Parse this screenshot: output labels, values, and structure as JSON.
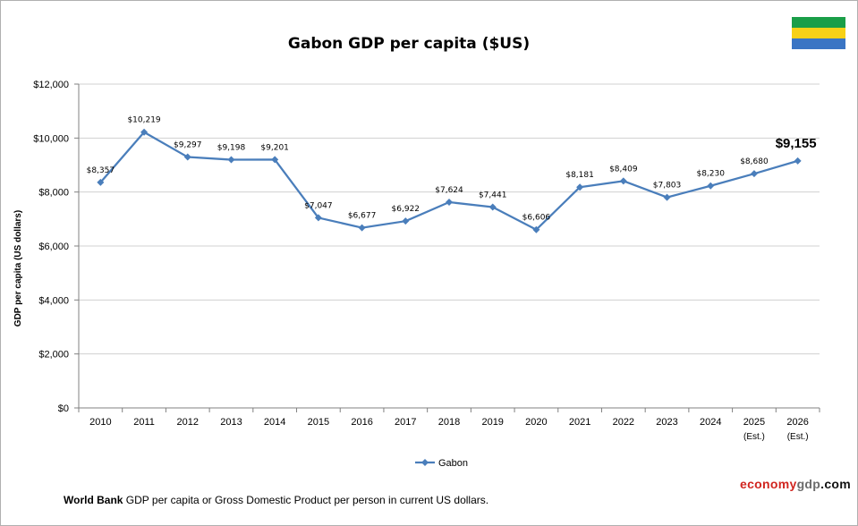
{
  "header": {
    "title": "Gabon GDP per capita ($US)"
  },
  "flag": {
    "stripes": [
      "#1a9e48",
      "#f7d117",
      "#3a75c4"
    ]
  },
  "chart_data": {
    "type": "line",
    "title": "Gabon GDP per capita ($US)",
    "xlabel": "",
    "ylabel": "GDP per capita (US dollars)",
    "ylim": [
      0,
      12000
    ],
    "y_ticks": [
      0,
      2000,
      4000,
      6000,
      8000,
      10000,
      12000
    ],
    "y_tick_labels": [
      "$0",
      "$2,000",
      "$4,000",
      "$6,000",
      "$8,000",
      "$10,000",
      "$12,000"
    ],
    "grid": true,
    "legend_position": "bottom",
    "categories": [
      "2010",
      "2011",
      "2012",
      "2013",
      "2014",
      "2015",
      "2016",
      "2017",
      "2018",
      "2019",
      "2020",
      "2021",
      "2022",
      "2023",
      "2024",
      "2025",
      "2026"
    ],
    "category_sublabels": [
      "",
      "",
      "",
      "",
      "",
      "",
      "",
      "",
      "",
      "",
      "",
      "",
      "",
      "",
      "",
      "(Est.)",
      "(Est.)"
    ],
    "series": [
      {
        "name": "Gabon",
        "color": "#4a7ebb",
        "values": [
          8357,
          10219,
          9297,
          9198,
          9201,
          7047,
          6677,
          6922,
          7624,
          7441,
          6606,
          8181,
          8409,
          7803,
          8230,
          8680,
          9155
        ],
        "data_labels": [
          "$8,357",
          "$10,219",
          "$9,297",
          "$9,198",
          "$9,201",
          "$7,047",
          "$6,677",
          "$6,922",
          "$7,624",
          "$7,441",
          "$6,606",
          "$8,181",
          "$8,409",
          "$7,803",
          "$8,230",
          "$8,680",
          "$9,155"
        ]
      }
    ]
  },
  "footer": {
    "source": "World Bank",
    "description": "GDP per capita or Gross Domestic Product per person in current US dollars."
  },
  "brand": {
    "part1": "economy",
    "part2": "gdp",
    "part3": ".com"
  }
}
